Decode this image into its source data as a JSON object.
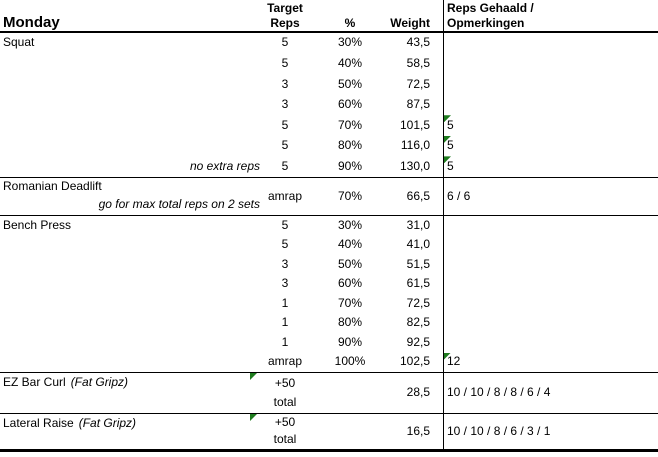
{
  "colors": {
    "flag_green": "#1e7b1e",
    "grid_black": "#000000"
  },
  "header": {
    "title": "Monday",
    "target_line1": "Target",
    "target_line2": "Reps",
    "percent": "%",
    "weight": "Weight",
    "result_line1": "Reps Gehaald /",
    "result_line2": "Opmerkingen"
  },
  "squat": {
    "name": "Squat",
    "rows": [
      {
        "target": "5",
        "pct": "30%",
        "weight": "43,5",
        "result": "",
        "flag": false
      },
      {
        "target": "5",
        "pct": "40%",
        "weight": "58,5",
        "result": "",
        "flag": false
      },
      {
        "target": "3",
        "pct": "50%",
        "weight": "72,5",
        "result": "",
        "flag": false
      },
      {
        "target": "3",
        "pct": "60%",
        "weight": "87,5",
        "result": "",
        "flag": false
      },
      {
        "target": "5",
        "pct": "70%",
        "weight": "101,5",
        "result": "5",
        "flag": true
      },
      {
        "target": "5",
        "pct": "80%",
        "weight": "116,0",
        "result": "5",
        "flag": true
      },
      {
        "target": "5",
        "pct": "90%",
        "weight": "130,0",
        "result": "5",
        "flag": true,
        "note": "no extra reps"
      }
    ]
  },
  "romanian_deadlift": {
    "name": "Romanian Deadlift",
    "note": "go for max total reps on 2 sets",
    "target": "amrap",
    "pct": "70%",
    "weight": "66,5",
    "result": "6 / 6"
  },
  "bench_press": {
    "name": "Bench Press",
    "rows": [
      {
        "target": "5",
        "pct": "30%",
        "weight": "31,0",
        "result": "",
        "flag": false
      },
      {
        "target": "5",
        "pct": "40%",
        "weight": "41,0",
        "result": "",
        "flag": false
      },
      {
        "target": "3",
        "pct": "50%",
        "weight": "51,5",
        "result": "",
        "flag": false
      },
      {
        "target": "3",
        "pct": "60%",
        "weight": "61,5",
        "result": "",
        "flag": false
      },
      {
        "target": "1",
        "pct": "70%",
        "weight": "72,5",
        "result": "",
        "flag": false
      },
      {
        "target": "1",
        "pct": "80%",
        "weight": "82,5",
        "result": "",
        "flag": false
      },
      {
        "target": "1",
        "pct": "90%",
        "weight": "92,5",
        "result": "",
        "flag": false
      },
      {
        "target": "amrap",
        "pct": "100%",
        "weight": "102,5",
        "result": "12",
        "flag": true
      }
    ]
  },
  "ez_bar_curl": {
    "name": "EZ Bar Curl",
    "name_note": "(Fat Gripz)",
    "target_line1": "+50",
    "target_line2": "total",
    "target_flag": true,
    "weight": "28,5",
    "result": "10 / 10 / 8 / 8 / 6 / 4"
  },
  "lateral_raise": {
    "name": "Lateral Raise",
    "name_note": "(Fat Gripz)",
    "target_line1": "+50",
    "target_line2": "total",
    "target_flag": true,
    "weight": "16,5",
    "result": "10 / 10 / 8 / 6 / 3 / 1"
  },
  "icons": {
    "cell_flag": "green-corner-triangle"
  }
}
